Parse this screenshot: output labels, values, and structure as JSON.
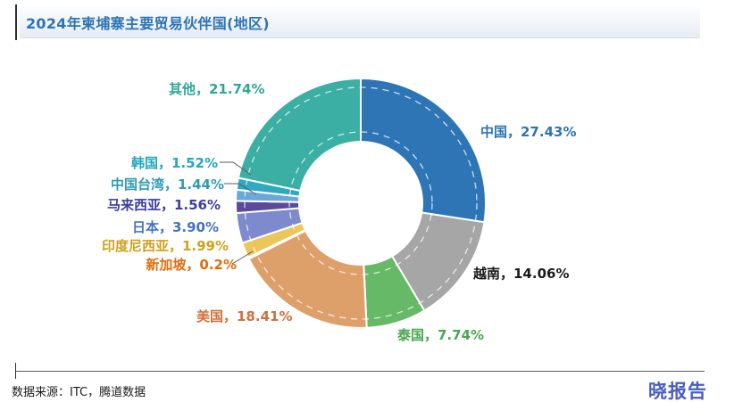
{
  "header": {
    "title": "2024年柬埔寨主要贸易伙伴国(地区)"
  },
  "footer": {
    "source": "数据来源：ITC，腾道数据",
    "brand": "晓报告"
  },
  "chart_data": {
    "type": "pie",
    "donut": true,
    "title": "2024年柬埔寨主要贸易伙伴国(地区)",
    "units": "%",
    "start_angle": "12 o'clock",
    "direction": "clockwise",
    "legend": "none (direct data labels with leader lines)",
    "segments": [
      {
        "label": "中国",
        "value": 27.43,
        "display": "中国，27.43%",
        "slice_color": "#2E75B6",
        "label_color": "#2E74B5"
      },
      {
        "label": "越南",
        "value": 14.06,
        "display": "越南，14.06%",
        "slice_color": "#A6A6A6",
        "label_color": "#1A1A1A"
      },
      {
        "label": "泰国",
        "value": 7.74,
        "display": "泰国，7.74%",
        "slice_color": "#66B967",
        "label_color": "#49A74F"
      },
      {
        "label": "美国",
        "value": 18.41,
        "display": "美国，18.41%",
        "slice_color": "#DEA06B",
        "label_color": "#D0703A"
      },
      {
        "label": "新加坡",
        "value": 0.2,
        "display": "新加坡，0.2%",
        "slice_color": "#D9734A",
        "label_color": "#E36C09"
      },
      {
        "label": "印度尼西亚",
        "value": 1.99,
        "display": "印度尼西亚，1.99%",
        "slice_color": "#EAC65B",
        "label_color": "#CFA11D"
      },
      {
        "label": "日本",
        "value": 3.9,
        "display": "日本，3.90%",
        "slice_color": "#7D8BCE",
        "label_color": "#4472C4"
      },
      {
        "label": "马来西亚",
        "value": 1.56,
        "display": "马来西亚，1.56%",
        "slice_color": "#5B4A9B",
        "label_color": "#3C3F9D"
      },
      {
        "label": "中国台湾",
        "value": 1.44,
        "display": "中国台湾，1.44%",
        "slice_color": "#6BA7D9",
        "label_color": "#2E9BB5"
      },
      {
        "label": "韩国",
        "value": 1.52,
        "display": "韩国，1.52%",
        "slice_color": "#2FA8C0",
        "label_color": "#22A7BE"
      },
      {
        "label": "其他",
        "value": 21.74,
        "display": "其他，21.74%",
        "slice_color": "#3BAFA3",
        "label_color": "#2FA699"
      }
    ]
  }
}
